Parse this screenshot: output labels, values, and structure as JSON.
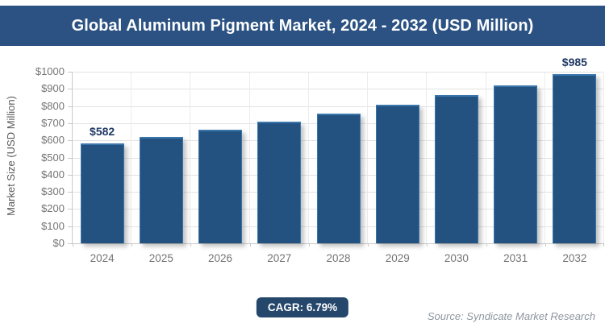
{
  "header": {
    "title": "Global Aluminum Pigment Market, 2024 - 2032 (USD Million)"
  },
  "chart_data": {
    "type": "bar",
    "title": "Global Aluminum Pigment Market, 2024 - 2032 (USD Million)",
    "categories": [
      "2024",
      "2025",
      "2026",
      "2027",
      "2028",
      "2029",
      "2030",
      "2031",
      "2032"
    ],
    "values": [
      582,
      621,
      663,
      709,
      757,
      808,
      863,
      922,
      985
    ],
    "bar_labels": [
      "$582",
      "",
      "",
      "",
      "",
      "",
      "",
      "",
      "$985"
    ],
    "xlabel": "",
    "ylabel": "Market Size (USD Million)",
    "ylim": [
      0,
      1000
    ],
    "ytick_step": 100,
    "ytick_labels": [
      "$0",
      "$100",
      "$200",
      "$300",
      "$400",
      "$500",
      "$600",
      "$700",
      "$800",
      "$900",
      "$1000"
    ],
    "grid": true,
    "legend": false
  },
  "footer": {
    "cagr_label": "CAGR: 6.79%",
    "source": "Source: Syndicate Market Research"
  },
  "colors": {
    "header_bg": "#2b5282",
    "header_text": "#ffffff",
    "bar_fill": "#235180",
    "bar_border": "#3a76ac",
    "value_label_text": "#1f3864",
    "axis_text": "#757575",
    "badge_bg": "#24476b",
    "source_text": "#8d96a0"
  }
}
